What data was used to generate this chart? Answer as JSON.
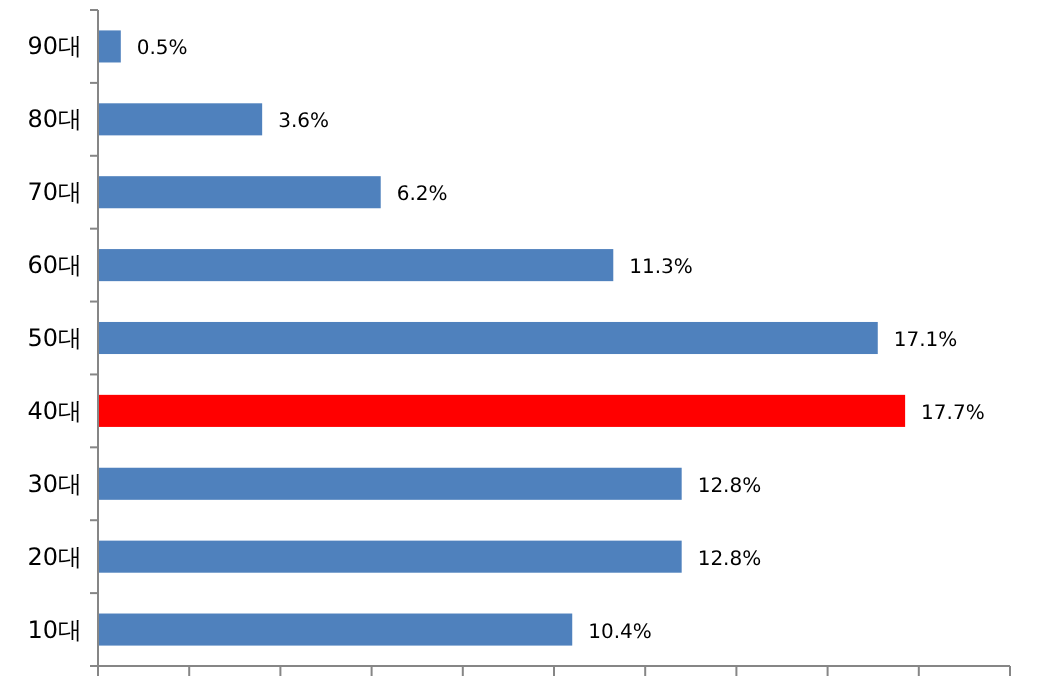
{
  "chart_data": {
    "type": "bar",
    "orientation": "horizontal",
    "categories": [
      "90대",
      "80대",
      "70대",
      "60대",
      "50대",
      "40대",
      "30대",
      "20대",
      "10대"
    ],
    "values": [
      0.5,
      3.6,
      6.2,
      11.3,
      17.1,
      17.7,
      12.8,
      12.8,
      10.4
    ],
    "value_labels": [
      "0.5%",
      "3.6%",
      "6.2%",
      "11.3%",
      "17.1%",
      "17.7%",
      "12.8%",
      "12.8%",
      "10.4%"
    ],
    "colors": [
      "#4f81bd",
      "#4f81bd",
      "#4f81bd",
      "#4f81bd",
      "#4f81bd",
      "#ff0000",
      "#4f81bd",
      "#4f81bd",
      "#4f81bd"
    ],
    "xlim": [
      0,
      20
    ],
    "xticks": [
      {
        "value": 0,
        "label": null
      },
      {
        "value": 2,
        "label": null
      },
      {
        "value": 4,
        "label": null
      },
      {
        "value": 6,
        "label": null
      },
      {
        "value": 8,
        "label": null
      },
      {
        "value": 10,
        "label": null
      },
      {
        "value": 12,
        "label": null
      },
      {
        "value": 14,
        "label": null
      },
      {
        "value": 16,
        "label": null
      },
      {
        "value": 18,
        "label": null
      },
      {
        "value": 20,
        "label": null
      }
    ],
    "grid": false
  }
}
